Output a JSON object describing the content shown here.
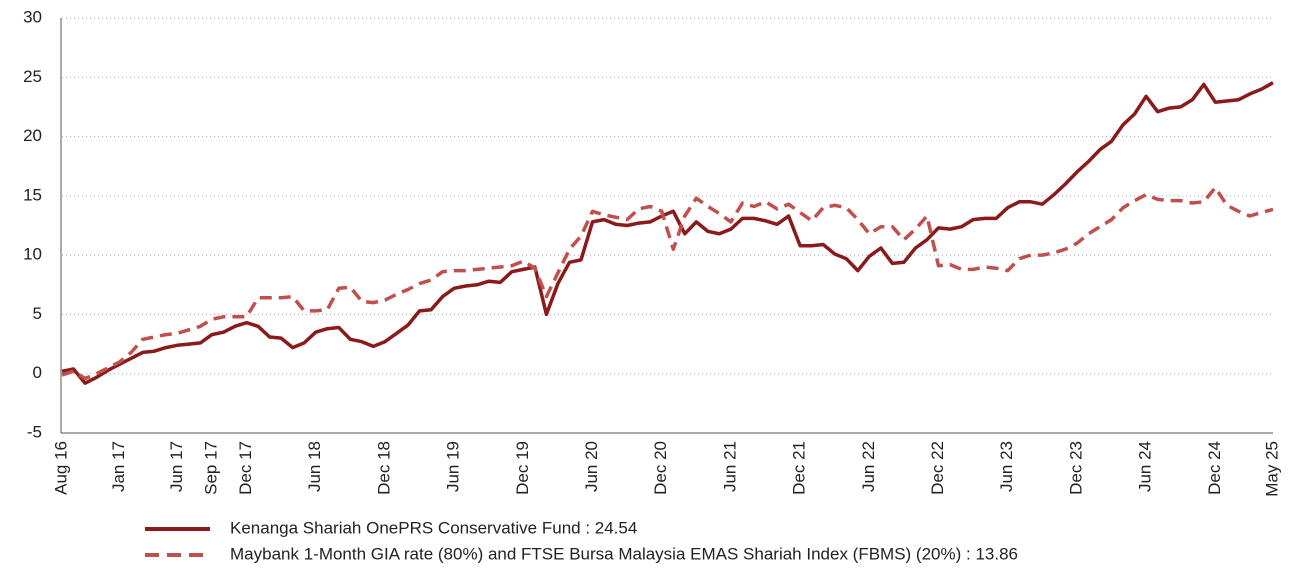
{
  "chart_data": {
    "type": "line",
    "categories": [
      "Aug 16",
      null,
      null,
      null,
      null,
      "Jan 17",
      null,
      null,
      null,
      null,
      "Jun 17",
      null,
      null,
      "Sep 17",
      null,
      null,
      "Dec 17",
      null,
      null,
      null,
      null,
      null,
      "Jun 18",
      null,
      null,
      null,
      null,
      null,
      "Dec 18",
      null,
      null,
      null,
      null,
      null,
      "Jun 19",
      null,
      null,
      null,
      null,
      null,
      "Dec 19",
      null,
      null,
      null,
      null,
      null,
      "Jun 20",
      null,
      null,
      null,
      null,
      null,
      "Dec 20",
      null,
      null,
      null,
      null,
      null,
      "Jun 21",
      null,
      null,
      null,
      null,
      null,
      "Dec 21",
      null,
      null,
      null,
      null,
      null,
      "Jun 22",
      null,
      null,
      null,
      null,
      null,
      "Dec 22",
      null,
      null,
      null,
      null,
      null,
      "Jun 23",
      null,
      null,
      null,
      null,
      null,
      "Dec 23",
      null,
      null,
      null,
      null,
      null,
      "Jun 24",
      null,
      null,
      null,
      null,
      null,
      "Dec 24",
      null,
      null,
      null,
      null,
      "May 25"
    ],
    "series": [
      {
        "name": "Kenanga Shariah OnePRS Conservative Fund : 24.54",
        "color": "#8b1a1a",
        "dashed": false,
        "values": [
          0.2,
          0.4,
          -0.8,
          -0.3,
          0.3,
          0.8,
          1.3,
          1.8,
          1.9,
          2.2,
          2.4,
          2.5,
          2.6,
          3.3,
          3.5,
          4.0,
          4.3,
          4.0,
          3.1,
          3.0,
          2.2,
          2.6,
          3.5,
          3.8,
          3.9,
          2.9,
          2.7,
          2.3,
          2.7,
          3.4,
          4.1,
          5.3,
          5.4,
          6.5,
          7.2,
          7.4,
          7.5,
          7.8,
          7.7,
          8.6,
          8.8,
          9.0,
          5.0,
          7.6,
          9.4,
          9.6,
          12.8,
          13.0,
          12.6,
          12.5,
          12.7,
          12.8,
          13.3,
          13.7,
          11.8,
          12.8,
          12.0,
          11.8,
          12.2,
          13.1,
          13.1,
          12.9,
          12.6,
          13.3,
          10.8,
          10.8,
          10.9,
          10.1,
          9.7,
          8.7,
          9.9,
          10.6,
          9.3,
          9.4,
          10.6,
          11.3,
          12.3,
          12.2,
          12.4,
          13.0,
          13.1,
          13.1,
          14.0,
          14.5,
          14.5,
          14.3,
          15.1,
          16.0,
          17.0,
          17.9,
          18.9,
          19.6,
          21.0,
          21.9,
          23.4,
          22.1,
          22.4,
          22.5,
          23.1,
          24.4,
          22.9,
          23.0,
          23.1,
          23.6,
          24.0,
          24.54
        ]
      },
      {
        "name": "Maybank 1-Month GIA rate (80%) and FTSE Bursa Malaysia EMAS Shariah Index (FBMS) (20%) : 13.86",
        "color": "#c0504d",
        "dashed": true,
        "values": [
          -0.1,
          0.2,
          -0.4,
          0.0,
          0.5,
          1.0,
          1.8,
          2.9,
          3.1,
          3.3,
          3.4,
          3.7,
          4.0,
          4.6,
          4.8,
          4.8,
          4.8,
          6.4,
          6.4,
          6.4,
          6.5,
          5.3,
          5.3,
          5.4,
          7.2,
          7.3,
          6.1,
          6.0,
          6.2,
          6.7,
          7.1,
          7.6,
          7.9,
          8.6,
          8.7,
          8.7,
          8.8,
          8.9,
          9.0,
          9.1,
          9.5,
          8.9,
          6.5,
          8.5,
          10.5,
          11.6,
          13.7,
          13.4,
          13.2,
          13.0,
          13.9,
          14.1,
          13.7,
          10.5,
          13.3,
          14.8,
          14.1,
          13.5,
          12.8,
          14.4,
          14.1,
          14.5,
          13.9,
          14.3,
          13.6,
          12.9,
          14.0,
          14.2,
          14.0,
          13.0,
          11.8,
          12.4,
          12.4,
          11.3,
          12.2,
          13.3,
          9.1,
          9.2,
          8.8,
          8.8,
          9.0,
          8.9,
          8.7,
          9.7,
          10.0,
          10.0,
          10.2,
          10.5,
          11.0,
          11.8,
          12.4,
          13.0,
          14.0,
          14.6,
          15.1,
          14.7,
          14.6,
          14.6,
          14.4,
          14.5,
          15.7,
          14.2,
          13.7,
          13.3,
          13.6,
          13.86
        ]
      }
    ],
    "ylim": [
      -5,
      30
    ],
    "yticks": [
      -5,
      0,
      5,
      10,
      15,
      20,
      25,
      30
    ],
    "grid": true,
    "legend": "bottom"
  }
}
